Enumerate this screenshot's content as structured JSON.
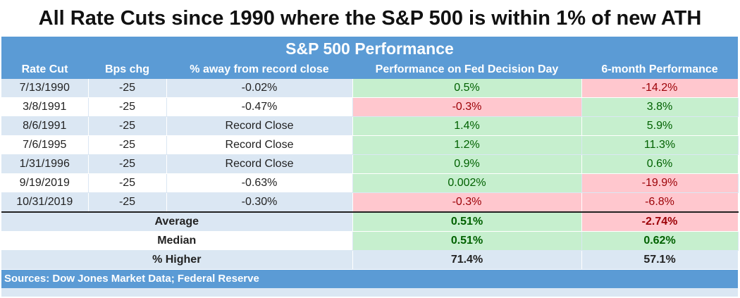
{
  "title": "All Rate Cuts since 1990 where the S&P 500 is within 1% of new ATH",
  "banner": "S&P 500 Performance",
  "footer": "Sources: Dow Jones Market Data; Federal Reserve",
  "colors": {
    "header": "#5b9bd5",
    "positive_fill": "#c6efce",
    "negative_fill": "#ffc7ce",
    "positive_text": "#006100",
    "negative_text": "#9c0006"
  },
  "chart_data": {
    "type": "table",
    "columns": [
      "Rate Cut",
      "Bps chg",
      "% away from record close",
      "Performance on Fed Decision Day",
      "6-month Performance"
    ],
    "rows": [
      {
        "date": "7/13/1990",
        "bps": "-25",
        "away": "-0.02%",
        "day": "0.5%",
        "day_sign": "pos",
        "six": "-14.2%",
        "six_sign": "neg"
      },
      {
        "date": "3/8/1991",
        "bps": "-25",
        "away": "-0.47%",
        "day": "-0.3%",
        "day_sign": "neg",
        "six": "3.8%",
        "six_sign": "pos"
      },
      {
        "date": "8/6/1991",
        "bps": "-25",
        "away": "Record Close",
        "day": "1.4%",
        "day_sign": "pos",
        "six": "5.9%",
        "six_sign": "pos"
      },
      {
        "date": "7/6/1995",
        "bps": "-25",
        "away": "Record Close",
        "day": "1.2%",
        "day_sign": "pos",
        "six": "11.3%",
        "six_sign": "pos"
      },
      {
        "date": "1/31/1996",
        "bps": "-25",
        "away": "Record Close",
        "day": "0.9%",
        "day_sign": "pos",
        "six": "0.6%",
        "six_sign": "pos"
      },
      {
        "date": "9/19/2019",
        "bps": "-25",
        "away": "-0.63%",
        "day": "0.002%",
        "day_sign": "pos",
        "six": "-19.9%",
        "six_sign": "neg"
      },
      {
        "date": "10/31/2019",
        "bps": "-25",
        "away": "-0.30%",
        "day": "-0.3%",
        "day_sign": "neg",
        "six": "-6.8%",
        "six_sign": "neg"
      }
    ],
    "summary": [
      {
        "label": "Average",
        "day": "0.51%",
        "day_sign": "pos",
        "six": "-2.74%",
        "six_sign": "neg"
      },
      {
        "label": "Median",
        "day": "0.51%",
        "day_sign": "pos",
        "six": "0.62%",
        "six_sign": "pos"
      },
      {
        "label": "% Higher",
        "day": "71.4%",
        "day_sign": "plain",
        "six": "57.1%",
        "six_sign": "plain"
      }
    ]
  }
}
